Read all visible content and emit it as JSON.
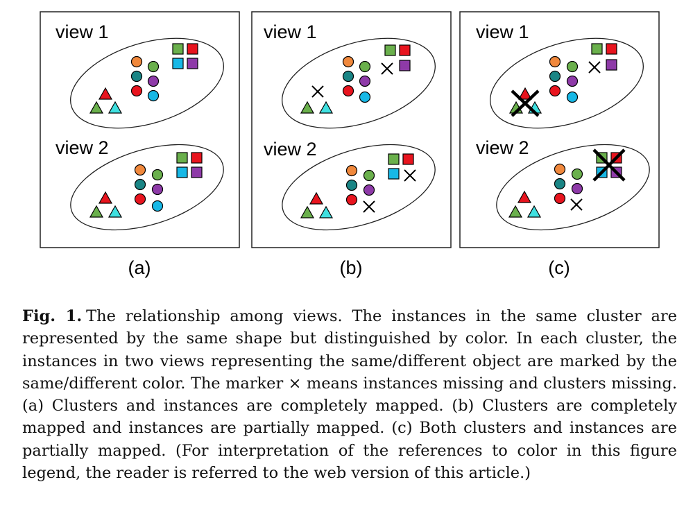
{
  "figure": {
    "panels": [
      {
        "id": "a",
        "label": "(a)",
        "view1_label": "view 1",
        "view2_label": "view 2"
      },
      {
        "id": "b",
        "label": "(b)",
        "view1_label": "view 1",
        "view2_label": "view 2"
      },
      {
        "id": "c",
        "label": "(c)",
        "view1_label": "view 1",
        "view2_label": "view 2"
      }
    ],
    "colors": {
      "orange": "#f0883c",
      "teal": "#1a8585",
      "red": "#e8141e",
      "green": "#6ab04c",
      "purple": "#8e3aa8",
      "blue": "#17b8e6",
      "cyan": "#3fe0e0"
    },
    "missing_marker": "×"
  },
  "caption": {
    "label": "Fig. 1.",
    "text": "The relationship among views. The instances in the same cluster are represented by the same shape but distinguished by color. In each cluster, the instances in two views representing the same/different object are marked by the same/different color. The marker × means instances missing and clusters missing. (a) Clusters and instances are completely mapped. (b) Clusters are completely mapped and instances are partially mapped. (c) Both clusters and instances are partially mapped. (For interpretation of the references to color in this figure legend, the reader is referred to the web version of this article.)"
  }
}
